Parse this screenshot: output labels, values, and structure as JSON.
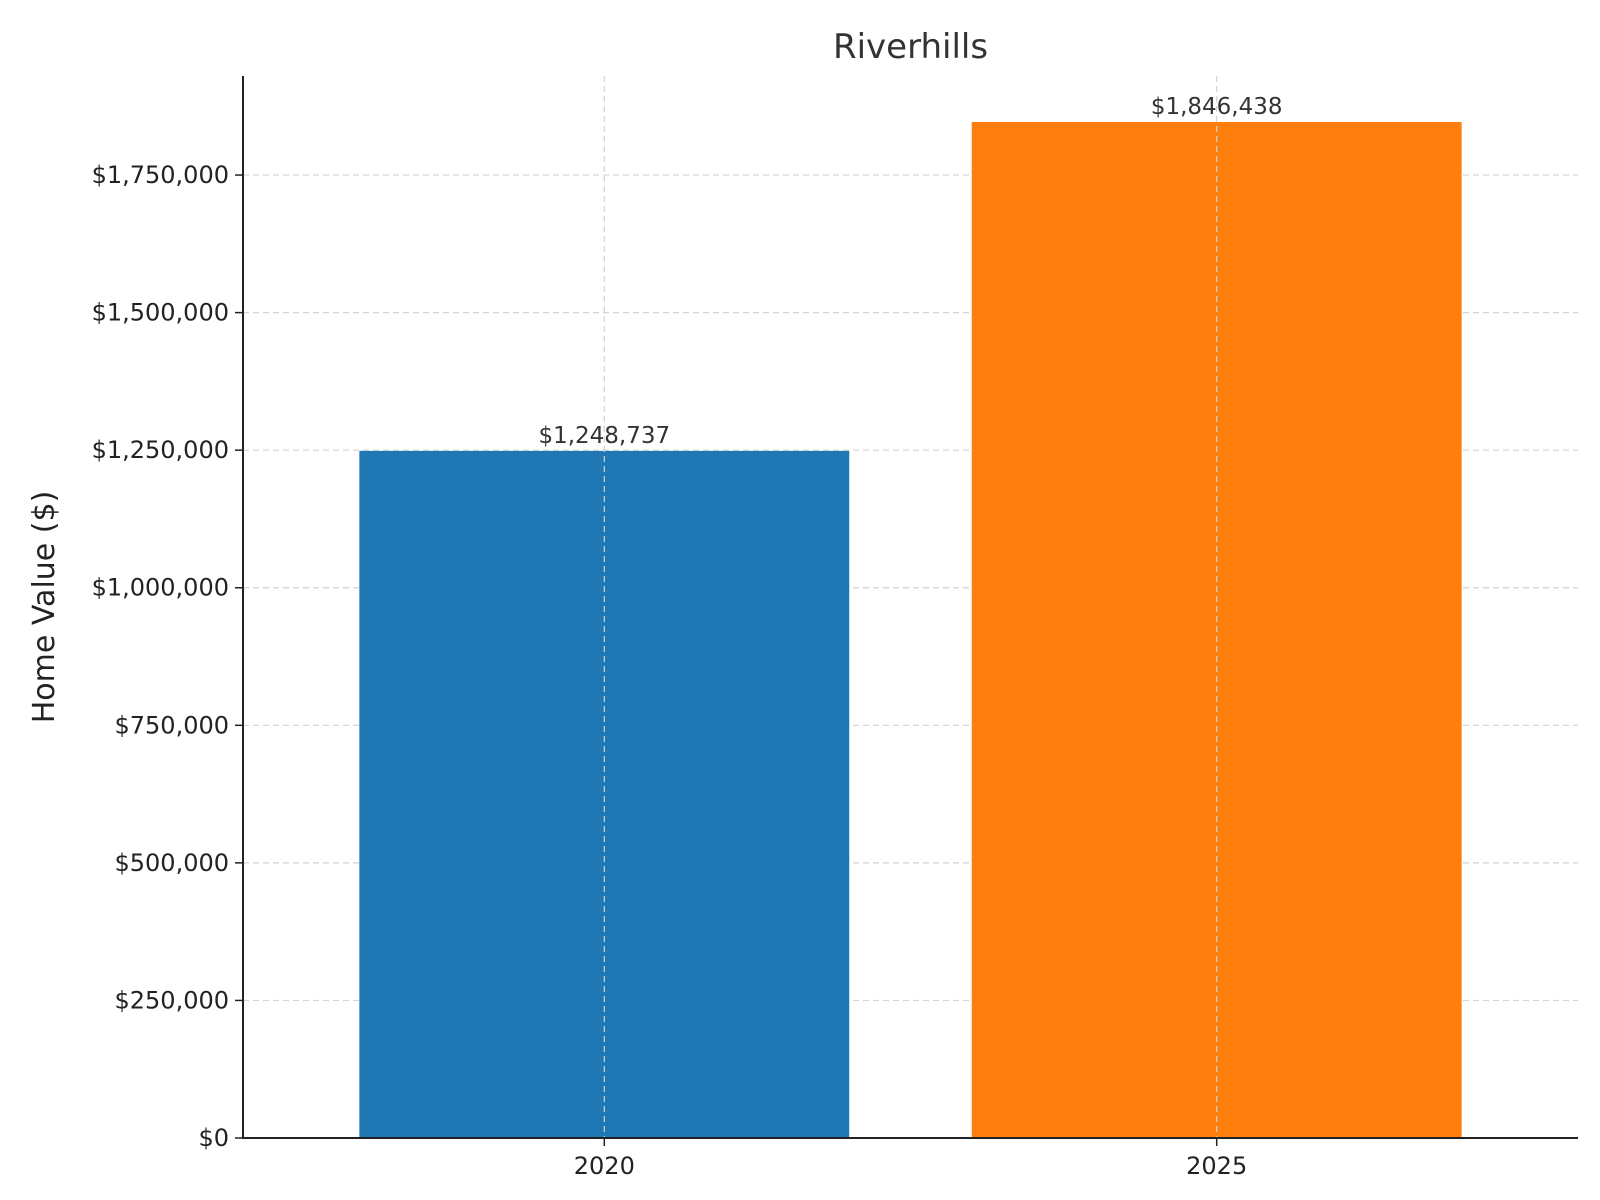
{
  "chart_data": {
    "type": "bar",
    "title": "Riverhills",
    "xlabel": "",
    "ylabel": "Home Value ($)",
    "categories": [
      "2020",
      "2025"
    ],
    "values": [
      1248737,
      1846438
    ],
    "value_labels": [
      "$1,248,737",
      "$1,846,438"
    ],
    "colors": [
      "#1f77b4",
      "#ff7f0e"
    ],
    "ylim": [
      0,
      1930000
    ],
    "yticks": [
      0,
      250000,
      500000,
      750000,
      1000000,
      1250000,
      1500000,
      1750000
    ],
    "ytick_labels": [
      "$0",
      "$250,000",
      "$500,000",
      "$750,000",
      "$1,000,000",
      "$1,250,000",
      "$1,500,000",
      "$1,750,000"
    ],
    "grid": true,
    "legend": "none"
  }
}
